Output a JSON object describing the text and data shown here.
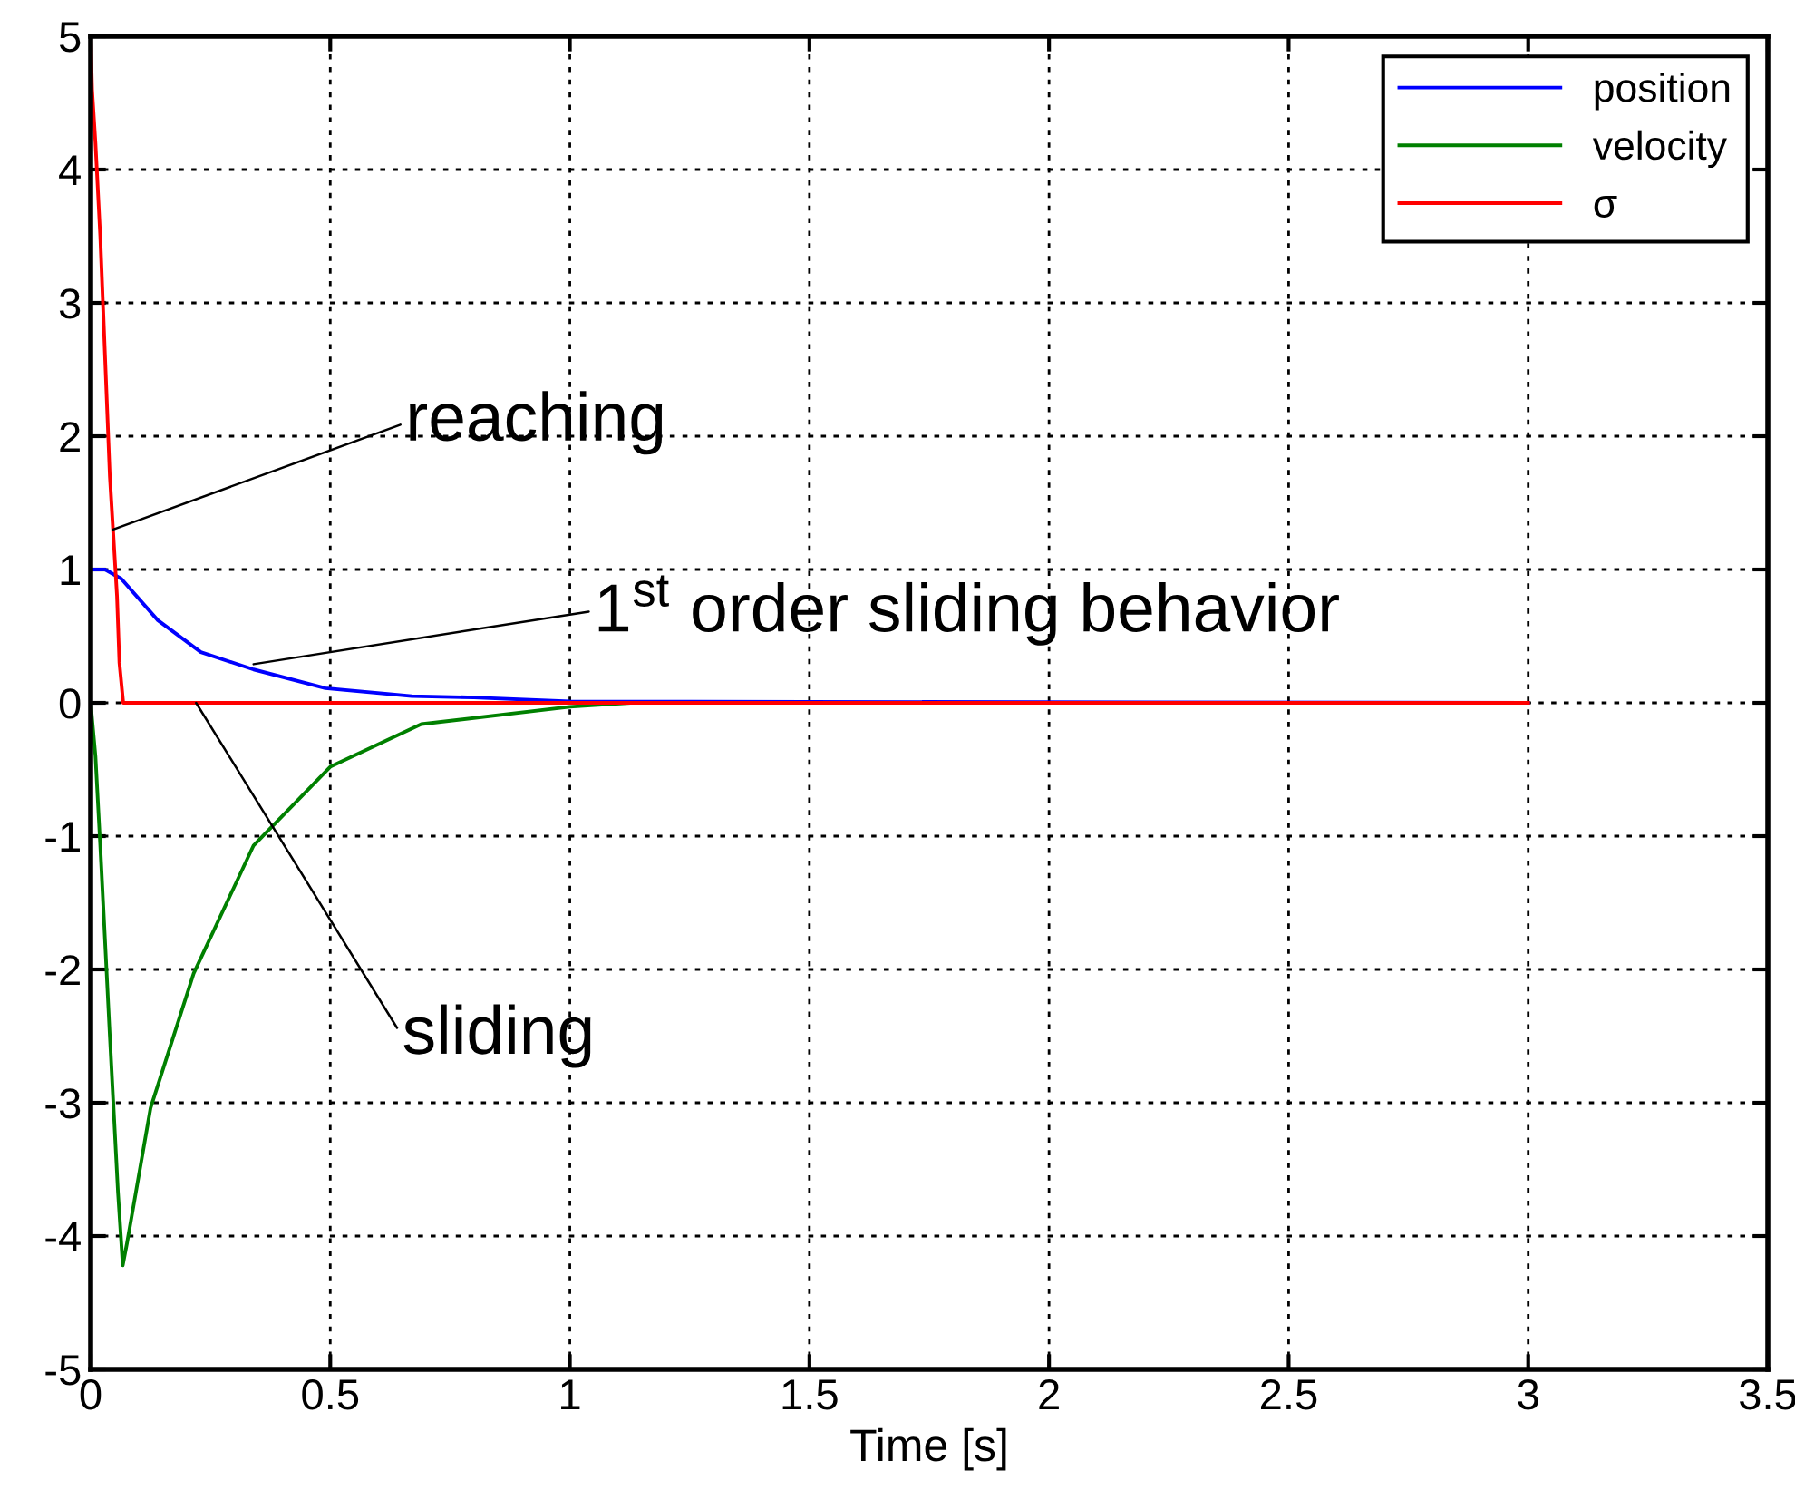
{
  "chart_data": {
    "type": "line",
    "xlabel": "Time [s]",
    "xlim": [
      0,
      3.5
    ],
    "xticks": [
      0,
      0.5,
      1,
      1.5,
      2,
      2.5,
      3,
      3.5
    ],
    "ylim": [
      -5,
      5
    ],
    "yticks": [
      -5,
      -4,
      -3,
      -2,
      -1,
      0,
      1,
      2,
      3,
      4,
      5
    ],
    "grid": true,
    "legend": "top right",
    "line_style": "solid",
    "series": [
      {
        "name": "position",
        "color": "#0000ff",
        "x": [
          0,
          0.03,
          0.064,
          0.14,
          0.23,
          0.34,
          0.49,
          0.67,
          0.8,
          1.0,
          3.0
        ],
        "values": [
          1,
          1,
          0.93,
          0.62,
          0.38,
          0.25,
          0.11,
          0.05,
          0.04,
          0.01,
          0
        ]
      },
      {
        "name": "velocity",
        "color": "#008000",
        "x": [
          0,
          0.01,
          0.02,
          0.04,
          0.057,
          0.067,
          0.076,
          0.125,
          0.215,
          0.34,
          0.5,
          0.69,
          1.0,
          1.13
        ],
        "values": [
          0,
          -0.4,
          -1.07,
          -2.5,
          -3.67,
          -4.22,
          -4.05,
          -3.04,
          -2.03,
          -1.07,
          -0.48,
          -0.16,
          -0.03,
          0
        ]
      },
      {
        "name": "σ",
        "color": "#ff0000",
        "x": [
          0,
          0.003,
          0.01,
          0.02,
          0.03,
          0.04,
          0.055,
          0.06,
          0.068,
          3.0
        ],
        "values": [
          5,
          4.6,
          4.2,
          3.5,
          2.6,
          1.7,
          0.8,
          0.3,
          0,
          0
        ]
      }
    ],
    "annotations": [
      {
        "text": "reaching",
        "x": 0.047,
        "y": 1.3
      },
      {
        "text": "1$^{st}$ order sliding behavior",
        "x": 0.34,
        "y": 0.29
      },
      {
        "text": "sliding",
        "x": 0.22,
        "y": 0
      }
    ]
  }
}
